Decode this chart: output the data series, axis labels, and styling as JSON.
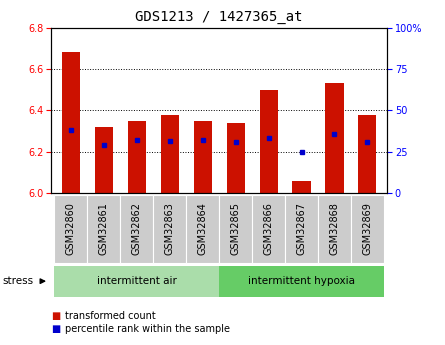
{
  "title": "GDS1213 / 1427365_at",
  "samples": [
    "GSM32860",
    "GSM32861",
    "GSM32862",
    "GSM32863",
    "GSM32864",
    "GSM32865",
    "GSM32866",
    "GSM32867",
    "GSM32868",
    "GSM32869"
  ],
  "red_values": [
    6.68,
    6.32,
    6.35,
    6.38,
    6.35,
    6.34,
    6.5,
    6.06,
    6.53,
    6.38
  ],
  "blue_values": [
    6.305,
    6.235,
    6.255,
    6.25,
    6.255,
    6.245,
    6.265,
    6.2,
    6.285,
    6.245
  ],
  "ylim_left": [
    6.0,
    6.8
  ],
  "ylim_right": [
    0,
    100
  ],
  "yticks_left": [
    6.0,
    6.2,
    6.4,
    6.6,
    6.8
  ],
  "yticks_right": [
    0,
    25,
    50,
    75,
    100
  ],
  "ytick_right_labels": [
    "0",
    "25",
    "50",
    "75",
    "100%"
  ],
  "bar_width": 0.55,
  "bar_color": "#cc1100",
  "blue_color": "#0000cc",
  "group1_label": "intermittent air",
  "group2_label": "intermittent hypoxia",
  "stress_label": "stress",
  "legend_red": "transformed count",
  "legend_blue": "percentile rank within the sample",
  "group_color1": "#aaddaa",
  "group_color2": "#66cc66",
  "sample_box_color": "#cccccc",
  "title_fontsize": 10,
  "tick_fontsize": 7,
  "label_fontsize": 7,
  "group_fontsize": 7.5
}
